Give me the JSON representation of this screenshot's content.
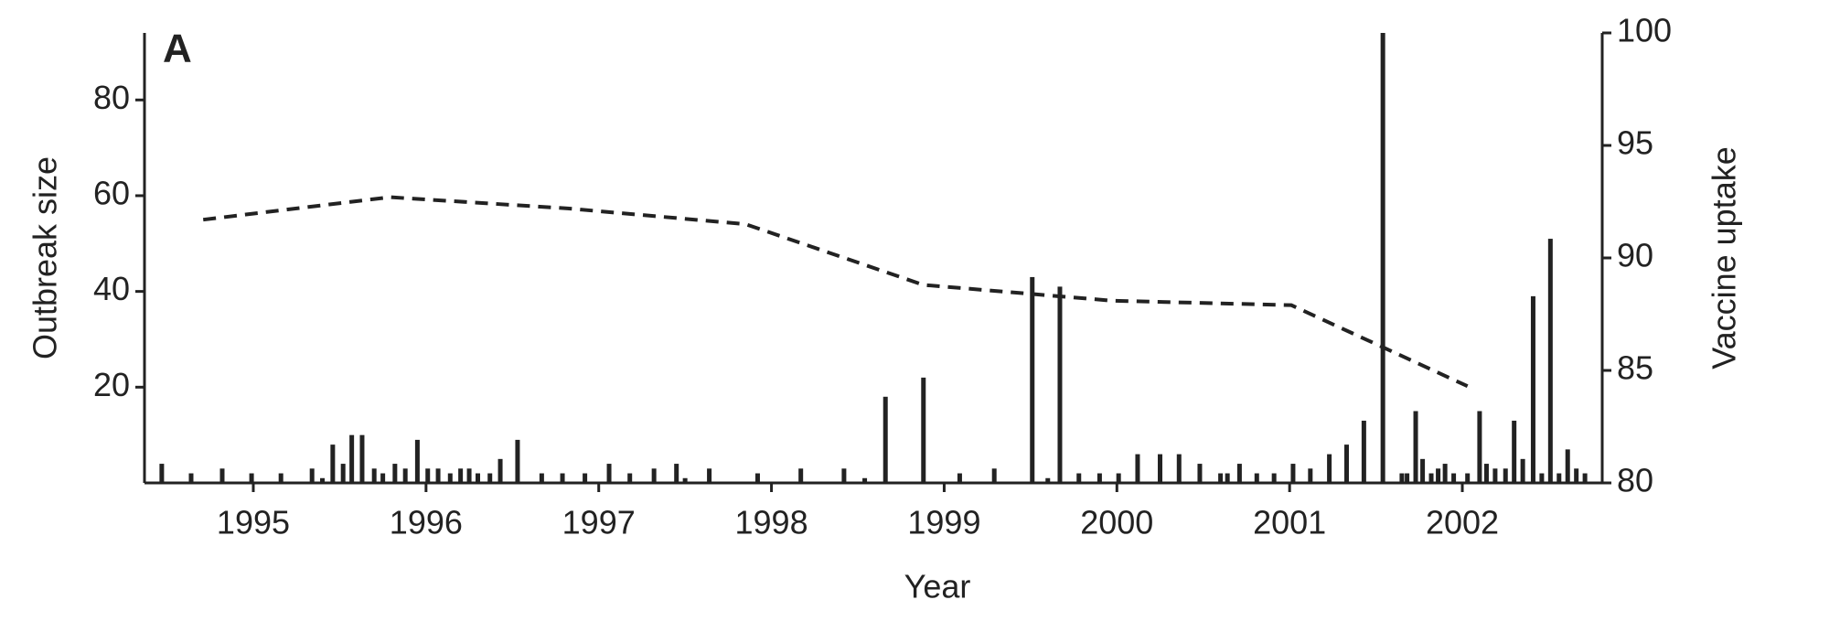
{
  "chart_data": {
    "type": "bar",
    "panel_label": "A",
    "xlabel": "Year",
    "ylabel": "Outbreak size",
    "y2label": "Vaccine uptake",
    "xlim": [
      1994.37,
      2002.81
    ],
    "xticks": [
      1995,
      1996,
      1997,
      1998,
      1999,
      2000,
      2001,
      2002
    ],
    "ylim": [
      0,
      94
    ],
    "yticks": [
      20,
      40,
      60,
      80
    ],
    "y2lim": [
      80,
      100
    ],
    "y2ticks": [
      80,
      85,
      90,
      95,
      100
    ],
    "series": [
      {
        "type": "bar",
        "color": "#222222",
        "x": [
          1994.47,
          1994.64,
          1994.82,
          1994.99,
          1995.16,
          1995.34,
          1995.4,
          1995.46,
          1995.52,
          1995.57,
          1995.63,
          1995.7,
          1995.75,
          1995.82,
          1995.88,
          1995.95,
          1996.01,
          1996.07,
          1996.14,
          1996.2,
          1996.25,
          1996.3,
          1996.37,
          1996.43,
          1996.53,
          1996.67,
          1996.79,
          1996.92,
          1997.06,
          1997.18,
          1997.32,
          1997.45,
          1997.5,
          1997.64,
          1997.92,
          1998.17,
          1998.42,
          1998.54,
          1998.66,
          1998.88,
          1999.09,
          1999.29,
          1999.51,
          1999.6,
          1999.67,
          1999.78,
          1999.9,
          2000.01,
          2000.12,
          2000.25,
          2000.36,
          2000.48,
          2000.6,
          2000.64,
          2000.71,
          2000.81,
          2000.91,
          2001.02,
          2001.12,
          2001.23,
          2001.33,
          2001.43,
          2001.54,
          2001.65,
          2001.68,
          2001.73,
          2001.77,
          2001.82,
          2001.86,
          2001.9,
          2001.95,
          2002.03,
          2002.1,
          2002.14,
          2002.19,
          2002.25,
          2002.3,
          2002.35,
          2002.41,
          2002.46,
          2002.51,
          2002.56,
          2002.61,
          2002.66,
          2002.71
        ],
        "values": [
          4,
          2,
          3,
          2,
          2,
          3,
          1,
          8,
          4,
          10,
          10,
          3,
          2,
          4,
          3,
          9,
          3,
          3,
          2,
          3,
          3,
          2,
          2,
          5,
          9,
          2,
          2,
          2,
          4,
          2,
          3,
          4,
          1,
          3,
          2,
          3,
          3,
          1,
          18,
          22,
          2,
          3,
          43,
          1,
          41,
          2,
          2,
          2,
          6,
          6,
          6,
          4,
          2,
          2,
          4,
          2,
          2,
          4,
          3,
          6,
          8,
          13,
          94,
          2,
          2,
          15,
          5,
          2,
          3,
          4,
          2,
          2,
          15,
          4,
          3,
          3,
          13,
          5,
          39,
          2,
          51,
          2,
          7,
          3,
          2
        ]
      },
      {
        "type": "line",
        "axis": "y2",
        "color": "#222222",
        "dashed": true,
        "x": [
          1994.71,
          1995.79,
          1996.82,
          1997.85,
          1998.88,
          1999.97,
          2001.01,
          2002.03
        ],
        "values": [
          91.7,
          92.7,
          92.2,
          91.5,
          88.8,
          88.1,
          87.9,
          84.3
        ]
      }
    ]
  }
}
